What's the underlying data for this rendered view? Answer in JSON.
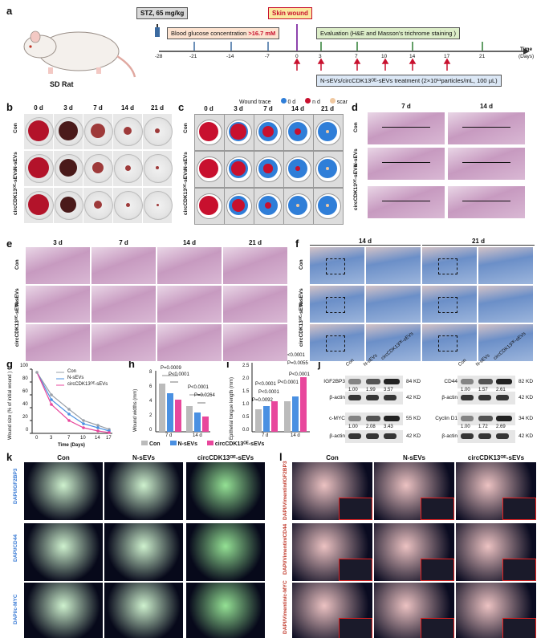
{
  "panel_a": {
    "label": "a",
    "stz": "STZ, 65 mg/kg",
    "skin_wound": "Skin wound",
    "glucose_prefix": "Blood glucose concentration ",
    "glucose_value": ">16.7 mM",
    "evaluation": "Evaluation (H&E and Masson's trichrome staining )",
    "treatment": "N-sEVs/circCDK13ᴼᴱ-sEVs treatment (2×10¹¹particles/mL, 100 μL)",
    "animal": "SD Rat",
    "time_label": "Time",
    "time_unit": "(Days)",
    "days": [
      "-28",
      "-21",
      "-14",
      "-7",
      "0",
      "3",
      "7",
      "10",
      "14",
      "17",
      "21"
    ]
  },
  "panel_b": {
    "label": "b",
    "cols": [
      "0 d",
      "3 d",
      "7 d",
      "14 d",
      "21 d"
    ],
    "rows": [
      "Con",
      "N-sEVs",
      "circCDK13ᴼᴱ-sEVs"
    ]
  },
  "panel_c": {
    "label": "c",
    "cols": [
      "0 d",
      "3 d",
      "7 d",
      "14 d",
      "21 d"
    ],
    "rows": [
      "Con",
      "N-sEVs",
      "circCDK13ᴼᴱ-sEVs"
    ],
    "legend_title": "Wound trace",
    "legend": [
      "0 d",
      "n d",
      "scar"
    ],
    "colors": {
      "day0": "#2f7ed8",
      "nday": "#c8102e",
      "scar": "#f0c8a0"
    }
  },
  "panel_d": {
    "label": "d",
    "cols": [
      "7 d",
      "14 d"
    ],
    "rows": [
      "Con",
      "N-sEVs",
      "circCDK13ᴼᴱ-sEVs"
    ]
  },
  "panel_e": {
    "label": "e",
    "cols": [
      "3 d",
      "7 d",
      "14 d",
      "21 d"
    ],
    "rows": [
      "Con",
      "N-sEVs",
      "circCDK13ᴼᴱ-sEVs"
    ]
  },
  "panel_f": {
    "label": "f",
    "cols": [
      "14 d",
      "21 d"
    ],
    "rows": [
      "Con",
      "N-sEVs",
      "circCDK13ᴼᴱ-sEVs"
    ]
  },
  "panel_g": {
    "label": "g",
    "ylabel": "Wound size (% of initial wound )",
    "xlabel": "Time (Days)",
    "legend": [
      "Con",
      "N-sEVs",
      "circCDK13ᴼᴱ-sEVs"
    ],
    "xticks": [
      "0",
      "3",
      "7",
      "10",
      "14",
      "17"
    ],
    "yticks": [
      "0",
      "20",
      "40",
      "60",
      "80",
      "100"
    ]
  },
  "panel_h": {
    "label": "h",
    "ylabel": "Wound widths (mm)",
    "xticks": [
      "7 d",
      "14 d"
    ],
    "yticks": [
      "0",
      "2",
      "4",
      "6",
      "8"
    ],
    "pvalues": [
      "P=0.0009",
      "P<0.0001",
      "P<0.0001",
      "P=0.0264"
    ]
  },
  "panel_i": {
    "label": "i",
    "ylabel": "Epithelial tongue length (mm)",
    "xticks": [
      "7 d",
      "14 d"
    ],
    "yticks": [
      "0.0",
      "0.5",
      "1.0",
      "1.5",
      "2.0",
      "2.5"
    ],
    "pvalues": [
      "P<0.0001",
      "P<0.0001",
      "P=0.0092",
      "P<0.0001",
      "P=0.0055",
      "P<0.0001",
      "P<0.0001"
    ]
  },
  "legend_hi": [
    "Con",
    "N-sEVs",
    "circCDK13ᴼᴱ-sEVs"
  ],
  "panel_j": {
    "label": "j",
    "lanes": [
      "Con",
      "N-sEVs",
      "circCDK13ᴼᴱ-sEVs"
    ],
    "left": [
      {
        "protein": "IGF2BP3",
        "kd": "84 KD",
        "values": [
          "1.00",
          "1.99",
          "3.57"
        ]
      },
      {
        "protein": "β-actin",
        "kd": "42 KD"
      },
      {
        "protein": "c-MYC",
        "kd": "55 KD",
        "values": [
          "1.00",
          "2.08",
          "3.43"
        ]
      },
      {
        "protein": "β-actin",
        "kd": "42 KD"
      }
    ],
    "right": [
      {
        "protein": "CD44",
        "kd": "82 KD",
        "values": [
          "1.00",
          "1.57",
          "2.61"
        ]
      },
      {
        "protein": "β-actin",
        "kd": "42 KD"
      },
      {
        "protein": "Cyclin D1",
        "kd": "34 KD",
        "values": [
          "1.00",
          "1.72",
          "2.69"
        ]
      },
      {
        "protein": "β-actin",
        "kd": "42 KD"
      }
    ]
  },
  "panel_k": {
    "label": "k",
    "cols": [
      "Con",
      "N-sEVs",
      "circCDK13ᴼᴱ-sEVs"
    ],
    "rows": [
      "DAPI/IGF2BP3",
      "DAPI/CD44",
      "DAPI/c-MYC"
    ]
  },
  "panel_l": {
    "label": "l",
    "cols": [
      "Con",
      "N-sEVs",
      "circCDK13ᴼᴱ-sEVs"
    ],
    "rows": [
      "DAPI/Vimentin/IGF2BP3",
      "DAPI/Vimentin/CD44",
      "DAPI/Vimentin/c-MYC"
    ]
  }
}
